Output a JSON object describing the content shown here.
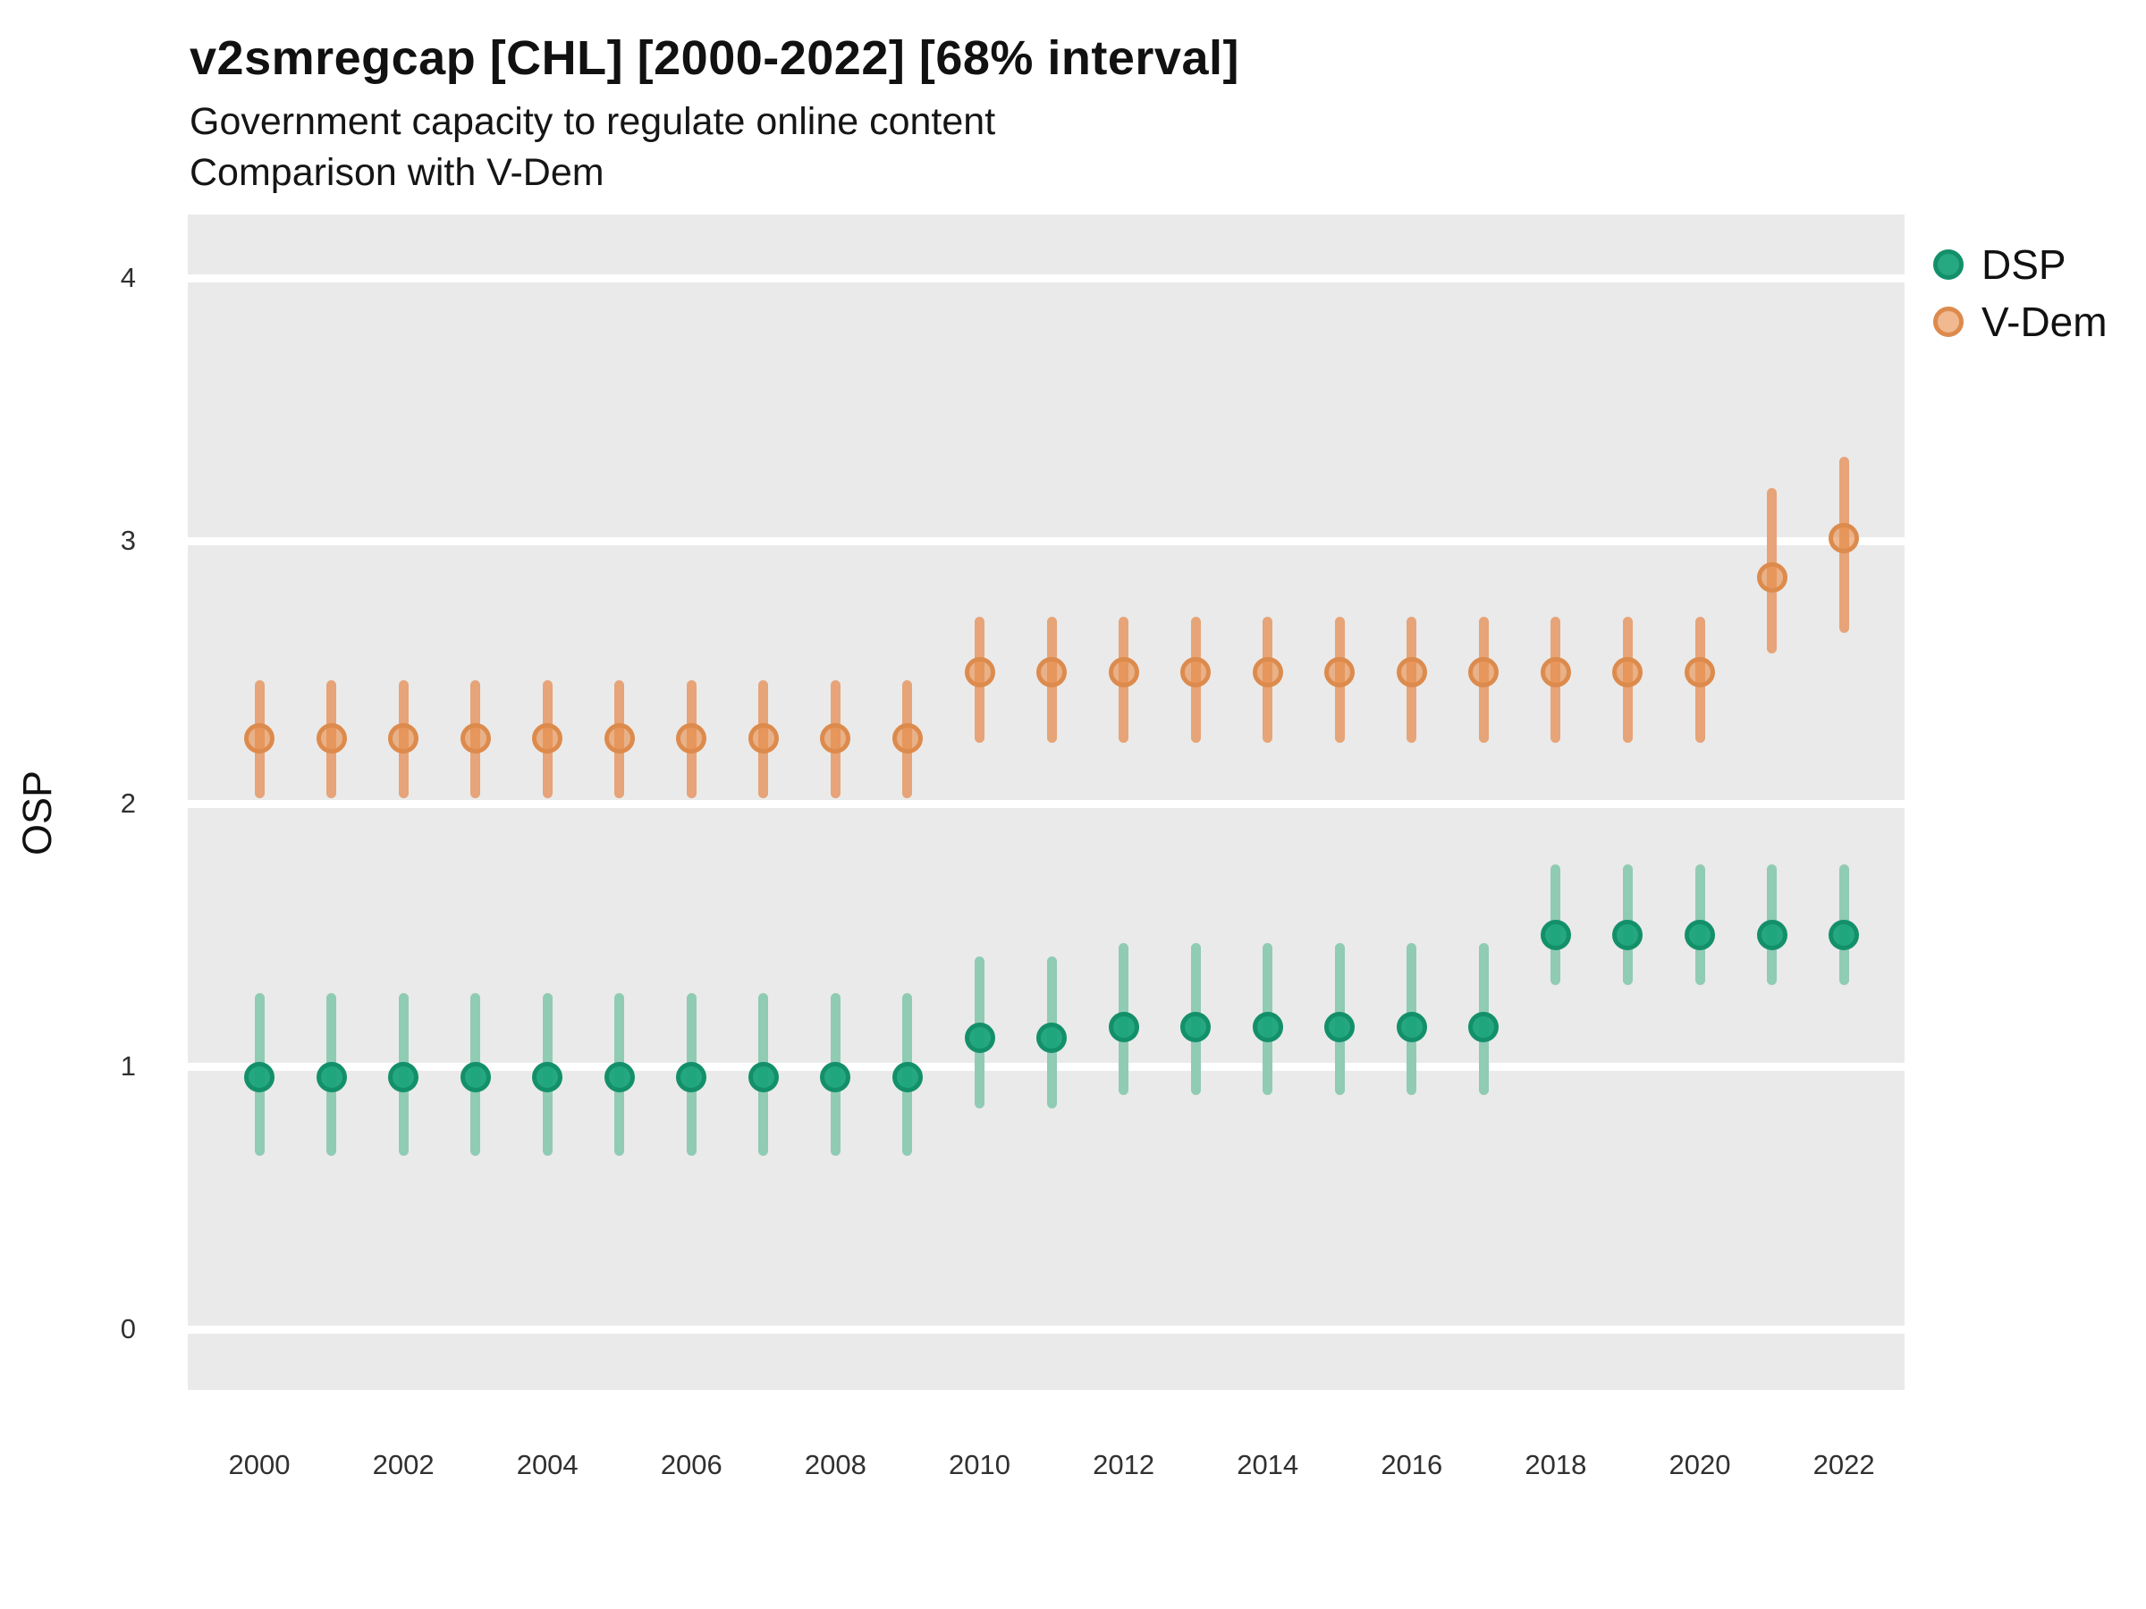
{
  "header": {
    "title": "v2smregcap [CHL] [2000-2022] [68% interval]",
    "subtitle_line1": "Government capacity to regulate online content",
    "subtitle_line2": "Comparison with V-Dem"
  },
  "chart_data": {
    "type": "scatter",
    "variant": "pointrange",
    "title": "v2smregcap [CHL] [2000-2022] [68% interval]",
    "subtitle": "Government capacity to regulate online content — Comparison with V-Dem",
    "interval": "68%",
    "xlabel": "",
    "ylabel": "OSP",
    "xlim": [
      1999.0,
      2022.9
    ],
    "ylim": [
      -0.23,
      4.24
    ],
    "x_ticks": [
      2000,
      2002,
      2004,
      2006,
      2008,
      2010,
      2012,
      2014,
      2016,
      2018,
      2020,
      2022
    ],
    "y_ticks": [
      0,
      1,
      2,
      3,
      4
    ],
    "grid": "horizontal-major-only",
    "legend_position": "right",
    "panel_bg": "#EAEAEA",
    "gridline_color": "#FFFFFF",
    "series": [
      {
        "name": "DSP",
        "point_fill": "rgba(26,163,122,0.95)",
        "point_border": "#13906A",
        "bar_color": "#90CBB4",
        "points": [
          {
            "year": 2000,
            "value": 0.96,
            "lo": 0.66,
            "hi": 1.28
          },
          {
            "year": 2001,
            "value": 0.96,
            "lo": 0.66,
            "hi": 1.28
          },
          {
            "year": 2002,
            "value": 0.96,
            "lo": 0.66,
            "hi": 1.28
          },
          {
            "year": 2003,
            "value": 0.96,
            "lo": 0.66,
            "hi": 1.28
          },
          {
            "year": 2004,
            "value": 0.96,
            "lo": 0.66,
            "hi": 1.28
          },
          {
            "year": 2005,
            "value": 0.96,
            "lo": 0.66,
            "hi": 1.28
          },
          {
            "year": 2006,
            "value": 0.96,
            "lo": 0.66,
            "hi": 1.28
          },
          {
            "year": 2007,
            "value": 0.96,
            "lo": 0.66,
            "hi": 1.28
          },
          {
            "year": 2008,
            "value": 0.96,
            "lo": 0.66,
            "hi": 1.28
          },
          {
            "year": 2009,
            "value": 0.96,
            "lo": 0.66,
            "hi": 1.28
          },
          {
            "year": 2010,
            "value": 1.11,
            "lo": 0.84,
            "hi": 1.42
          },
          {
            "year": 2011,
            "value": 1.11,
            "lo": 0.84,
            "hi": 1.42
          },
          {
            "year": 2012,
            "value": 1.15,
            "lo": 0.89,
            "hi": 1.47
          },
          {
            "year": 2013,
            "value": 1.15,
            "lo": 0.89,
            "hi": 1.47
          },
          {
            "year": 2014,
            "value": 1.15,
            "lo": 0.89,
            "hi": 1.47
          },
          {
            "year": 2015,
            "value": 1.15,
            "lo": 0.89,
            "hi": 1.47
          },
          {
            "year": 2016,
            "value": 1.15,
            "lo": 0.89,
            "hi": 1.47
          },
          {
            "year": 2017,
            "value": 1.15,
            "lo": 0.89,
            "hi": 1.47
          },
          {
            "year": 2018,
            "value": 1.5,
            "lo": 1.31,
            "hi": 1.77
          },
          {
            "year": 2019,
            "value": 1.5,
            "lo": 1.31,
            "hi": 1.77
          },
          {
            "year": 2020,
            "value": 1.5,
            "lo": 1.31,
            "hi": 1.77
          },
          {
            "year": 2021,
            "value": 1.5,
            "lo": 1.31,
            "hi": 1.77
          },
          {
            "year": 2022,
            "value": 1.5,
            "lo": 1.31,
            "hi": 1.77
          }
        ]
      },
      {
        "name": "V-Dem",
        "point_fill": "rgba(230,142,76,0.62)",
        "point_border": "#DD8B4D",
        "bar_color": "#E6A478",
        "points": [
          {
            "year": 2000,
            "value": 2.25,
            "lo": 2.02,
            "hi": 2.47
          },
          {
            "year": 2001,
            "value": 2.25,
            "lo": 2.02,
            "hi": 2.47
          },
          {
            "year": 2002,
            "value": 2.25,
            "lo": 2.02,
            "hi": 2.47
          },
          {
            "year": 2003,
            "value": 2.25,
            "lo": 2.02,
            "hi": 2.47
          },
          {
            "year": 2004,
            "value": 2.25,
            "lo": 2.02,
            "hi": 2.47
          },
          {
            "year": 2005,
            "value": 2.25,
            "lo": 2.02,
            "hi": 2.47
          },
          {
            "year": 2006,
            "value": 2.25,
            "lo": 2.02,
            "hi": 2.47
          },
          {
            "year": 2007,
            "value": 2.25,
            "lo": 2.02,
            "hi": 2.47
          },
          {
            "year": 2008,
            "value": 2.25,
            "lo": 2.02,
            "hi": 2.47
          },
          {
            "year": 2009,
            "value": 2.25,
            "lo": 2.02,
            "hi": 2.47
          },
          {
            "year": 2010,
            "value": 2.5,
            "lo": 2.23,
            "hi": 2.71
          },
          {
            "year": 2011,
            "value": 2.5,
            "lo": 2.23,
            "hi": 2.71
          },
          {
            "year": 2012,
            "value": 2.5,
            "lo": 2.23,
            "hi": 2.71
          },
          {
            "year": 2013,
            "value": 2.5,
            "lo": 2.23,
            "hi": 2.71
          },
          {
            "year": 2014,
            "value": 2.5,
            "lo": 2.23,
            "hi": 2.71
          },
          {
            "year": 2015,
            "value": 2.5,
            "lo": 2.23,
            "hi": 2.71
          },
          {
            "year": 2016,
            "value": 2.5,
            "lo": 2.23,
            "hi": 2.71
          },
          {
            "year": 2017,
            "value": 2.5,
            "lo": 2.23,
            "hi": 2.71
          },
          {
            "year": 2018,
            "value": 2.5,
            "lo": 2.23,
            "hi": 2.71
          },
          {
            "year": 2019,
            "value": 2.5,
            "lo": 2.23,
            "hi": 2.71
          },
          {
            "year": 2020,
            "value": 2.5,
            "lo": 2.23,
            "hi": 2.71
          },
          {
            "year": 2021,
            "value": 2.86,
            "lo": 2.57,
            "hi": 3.2
          },
          {
            "year": 2022,
            "value": 3.01,
            "lo": 2.65,
            "hi": 3.32
          }
        ]
      }
    ]
  }
}
